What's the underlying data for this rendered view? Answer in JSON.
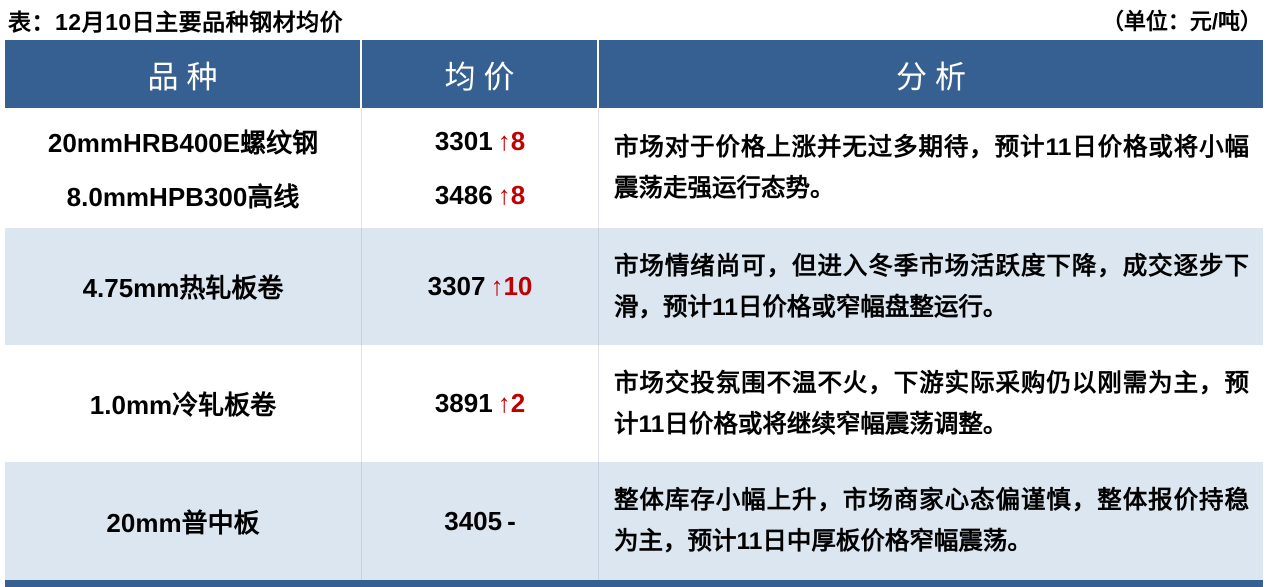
{
  "title": "表：12月10日主要品种钢材均价",
  "unit": "（单位：元/吨）",
  "colors": {
    "header_bg": "#376092",
    "alt_row_bg": "#dce6f1",
    "up_red": "#c00000",
    "bottom_bar": "#376092"
  },
  "table": {
    "headers": {
      "variety": "品种",
      "price": "均价",
      "analysis": "分析"
    },
    "groups": [
      {
        "rows": [
          {
            "variety": "20mmHRB400E螺纹钢",
            "price": "3301",
            "change": "↑8",
            "direction": "up"
          },
          {
            "variety": "8.0mmHPB300高线",
            "price": "3486",
            "change": "↑8",
            "direction": "up"
          }
        ],
        "analysis": "市场对于价格上涨并无过多期待，预计11日价格或将小幅震荡走强运行态势。"
      },
      {
        "rows": [
          {
            "variety": "4.75mm热轧板卷",
            "price": "3307",
            "change": "↑10",
            "direction": "up"
          }
        ],
        "analysis": "市场情绪尚可，但进入冬季市场活跃度下降，成交逐步下滑，预计11日价格或窄幅盘整运行。"
      },
      {
        "rows": [
          {
            "variety": "1.0mm冷轧板卷",
            "price": "3891",
            "change": "↑2",
            "direction": "up"
          }
        ],
        "analysis": "市场交投氛围不温不火，下游实际采购仍以刚需为主，预计11日价格或将继续窄幅震荡调整。"
      },
      {
        "rows": [
          {
            "variety": "20mm普中板",
            "price": "3405",
            "change": "-",
            "direction": "flat"
          }
        ],
        "analysis": "整体库存小幅上升，市场商家心态偏谨慎，整体报价持稳为主，预计11日中厚板价格窄幅震荡。"
      }
    ]
  }
}
